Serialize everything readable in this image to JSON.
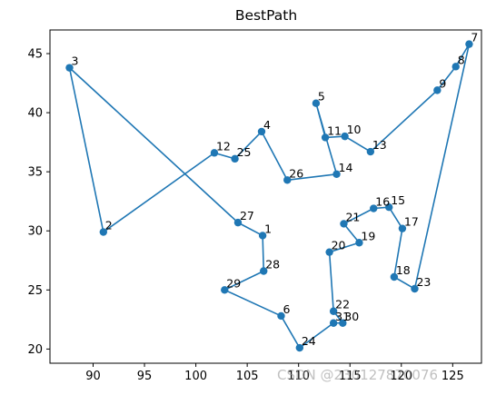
{
  "chart_data": {
    "type": "line",
    "title": "BestPath",
    "xlabel": "",
    "ylabel": "",
    "xlim": [
      85.8,
      127.8
    ],
    "ylim": [
      18.8,
      47.0
    ],
    "xticks": [
      90,
      95,
      100,
      105,
      110,
      115,
      120,
      125
    ],
    "yticks": [
      20,
      25,
      30,
      35,
      40,
      45
    ],
    "grid": false,
    "legend": "none",
    "series": [
      {
        "marker": "circle",
        "path": [
          {
            "label": "3",
            "x": 87.7,
            "y": 43.8
          },
          {
            "label": "27",
            "x": 104.1,
            "y": 30.7
          },
          {
            "label": "1",
            "x": 106.5,
            "y": 29.6
          },
          {
            "label": "28",
            "x": 106.6,
            "y": 26.6
          },
          {
            "label": "29",
            "x": 102.8,
            "y": 25.0
          },
          {
            "label": "6",
            "x": 108.3,
            "y": 22.8
          },
          {
            "label": "24",
            "x": 110.1,
            "y": 20.1
          },
          {
            "label": "31",
            "x": 113.4,
            "y": 22.2
          },
          {
            "label": "30",
            "x": 114.3,
            "y": 22.2
          },
          {
            "label": "22",
            "x": 113.4,
            "y": 23.2
          },
          {
            "label": "20",
            "x": 113.0,
            "y": 28.2
          },
          {
            "label": "19",
            "x": 115.9,
            "y": 29.0
          },
          {
            "label": "21",
            "x": 114.4,
            "y": 30.6
          },
          {
            "label": "16",
            "x": 117.3,
            "y": 31.9
          },
          {
            "label": "15",
            "x": 118.8,
            "y": 32.0
          },
          {
            "label": "17",
            "x": 120.1,
            "y": 30.2
          },
          {
            "label": "18",
            "x": 119.3,
            "y": 26.1
          },
          {
            "label": "23",
            "x": 121.3,
            "y": 25.1
          },
          {
            "label": "7",
            "x": 126.6,
            "y": 45.8
          },
          {
            "label": "8",
            "x": 125.3,
            "y": 43.9
          },
          {
            "label": "9",
            "x": 123.5,
            "y": 41.9
          },
          {
            "label": "13",
            "x": 117.0,
            "y": 36.7
          },
          {
            "label": "10",
            "x": 114.5,
            "y": 38.0
          },
          {
            "label": "11",
            "x": 112.6,
            "y": 37.9
          },
          {
            "label": "5",
            "x": 111.7,
            "y": 40.8
          },
          {
            "label": "14",
            "x": 113.7,
            "y": 34.8
          },
          {
            "label": "26",
            "x": 108.9,
            "y": 34.3
          },
          {
            "label": "4",
            "x": 106.4,
            "y": 38.4
          },
          {
            "label": "25",
            "x": 103.8,
            "y": 36.1
          },
          {
            "label": "12",
            "x": 101.8,
            "y": 36.6
          },
          {
            "label": "2",
            "x": 91.0,
            "y": 29.9
          },
          {
            "label": "3",
            "x": 87.7,
            "y": 43.8
          }
        ],
        "color": "#1f77b4"
      }
    ]
  },
  "watermark": "CSDN @230127870076"
}
